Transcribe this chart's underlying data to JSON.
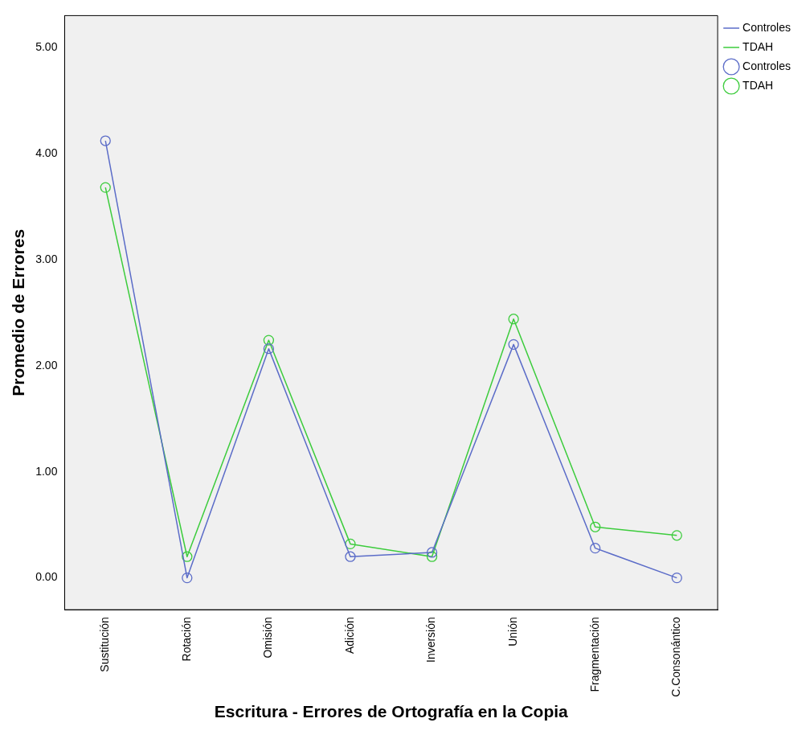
{
  "chart_data": {
    "type": "line",
    "xlabel": "Escritura - Errores de Ortografía en la Copia",
    "ylabel": "Promedio de Errores",
    "categories": [
      "Sustitución",
      "Rotación",
      "Omisión",
      "Adición",
      "Inversión",
      "Unión",
      "Fragmentación",
      "C.Consonántico"
    ],
    "series": [
      {
        "name": "Controles",
        "color": "#5b6cc8",
        "values": [
          4.12,
          0,
          2.16,
          0.2,
          0.24,
          2.2,
          0.28,
          0
        ]
      },
      {
        "name": "TDAH",
        "color": "#3ccc3c",
        "values": [
          3.68,
          0.2,
          2.24,
          0.32,
          0.2,
          2.44,
          0.48,
          0.4
        ]
      }
    ],
    "ylim": [
      -0.3,
      5.3
    ],
    "yticks": [
      {
        "value": 0,
        "label": "0.00"
      },
      {
        "value": 1,
        "label": "1.00"
      },
      {
        "value": 2,
        "label": "2.00"
      },
      {
        "value": 3,
        "label": "3.00"
      },
      {
        "value": 4,
        "label": "4.00"
      },
      {
        "value": 5,
        "label": "5.00"
      }
    ],
    "grid": false,
    "legend": "top right",
    "marker": "circle",
    "line_style": "solid"
  }
}
